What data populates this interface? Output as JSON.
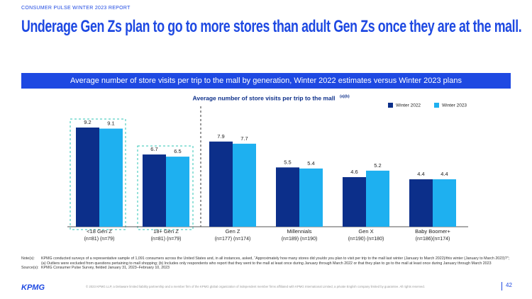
{
  "header": {
    "report": "CONSUMER PULSE WINTER 2023 REPORT",
    "title": "Underage Gen Zs plan to go to more stores than adult Gen Zs once they are at the mall."
  },
  "banner": "Average number of store visits per trip to the mall by generation, Winter 2022 estimates versus Winter 2023 plans",
  "chart_data": {
    "type": "bar",
    "title": "Average number of store visits per trip to the mall",
    "title_note": "(a)(b)",
    "categories": [
      "<18 Gen Z",
      "18+ Gen Z",
      "Gen Z",
      "Millennials",
      "Gen X",
      "Baby Boomer+"
    ],
    "sample_sizes": [
      "(n=81) (n=79)",
      "(n=81) (n=79)",
      "(n=177) (n=174)",
      "(n=189) (n=190)",
      "(n=190) (n=180)",
      "(n=186)(n=174)"
    ],
    "series": [
      {
        "name": "Winter 2022",
        "color": "#0c2f8a",
        "values": [
          9.2,
          6.7,
          7.9,
          5.5,
          4.6,
          4.4
        ]
      },
      {
        "name": "Winter 2023",
        "color": "#1eb0f0",
        "values": [
          9.1,
          6.5,
          7.7,
          5.4,
          5.2,
          4.4
        ]
      }
    ],
    "legend": "top-right"
  },
  "notes": {
    "note_label": "Note(s):",
    "note": "KPMG conducted surveys of a representative sample of 1,091 consumers across the United States and, in all instances, asked, “Approximately how many stores did you/do you plan to visit per trip to the mall last winter (January to March 2022)/this winter (January to March 2023)?”; (a) Outliers were excluded from questions pertaining to mall shopping; (b) Includes only respondents who report that they went to the mall at least once during January through March 2022 or that they plan to go to the mall at least once during January through March 2023",
    "source_label": "Source(s):",
    "source": "KPMG Consumer Pulse Survey, fielded January 31, 2023–February 10, 2023"
  },
  "footer": {
    "logo": "KPMG",
    "copyright": "© 2023 KPMG LLP, a Delaware limited liability partnership and a member firm of the KPMG global organization of independent member firms affiliated with KPMG International Limited, a private English company limited by guarantee. All rights reserved.",
    "page": "42"
  }
}
